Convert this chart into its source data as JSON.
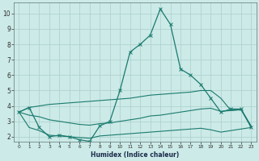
{
  "xlabel": "Humidex (Indice chaleur)",
  "background_color": "#cceae7",
  "grid_color": "#aacfcc",
  "line_color": "#1a7a6e",
  "xlim": [
    -0.5,
    23.5
  ],
  "ylim": [
    1.7,
    10.7
  ],
  "x_ticks": [
    0,
    1,
    2,
    3,
    4,
    5,
    6,
    7,
    8,
    9,
    10,
    11,
    12,
    13,
    14,
    15,
    16,
    17,
    18,
    19,
    20,
    21,
    22,
    23
  ],
  "y_ticks": [
    2,
    3,
    4,
    5,
    6,
    7,
    8,
    9,
    10
  ],
  "main_x": [
    0,
    1,
    2,
    3,
    4,
    5,
    6,
    7,
    8,
    9,
    10,
    11,
    12,
    13,
    14,
    15,
    16,
    17,
    18,
    19,
    20,
    21,
    22,
    23
  ],
  "main_y": [
    3.6,
    3.9,
    2.6,
    2.0,
    2.1,
    2.0,
    1.8,
    1.7,
    2.7,
    3.0,
    5.0,
    7.5,
    8.0,
    8.6,
    10.3,
    9.3,
    6.4,
    6.0,
    5.4,
    4.5,
    3.6,
    3.8,
    3.8,
    2.6
  ],
  "upper_x": [
    0,
    1,
    2,
    3,
    4,
    5,
    6,
    7,
    8,
    9,
    10,
    11,
    12,
    13,
    14,
    15,
    16,
    17,
    18,
    19,
    20,
    21,
    22,
    23
  ],
  "upper_y": [
    3.6,
    3.9,
    4.0,
    4.1,
    4.15,
    4.2,
    4.25,
    4.3,
    4.35,
    4.4,
    4.45,
    4.5,
    4.6,
    4.7,
    4.75,
    4.8,
    4.85,
    4.9,
    5.0,
    5.0,
    4.5,
    3.7,
    3.8,
    2.7
  ],
  "mid_x": [
    0,
    1,
    2,
    3,
    4,
    5,
    6,
    7,
    8,
    9,
    10,
    11,
    12,
    13,
    14,
    15,
    16,
    17,
    18,
    19,
    20,
    21,
    22,
    23
  ],
  "mid_y": [
    3.6,
    3.4,
    3.3,
    3.1,
    3.0,
    2.9,
    2.8,
    2.75,
    2.85,
    2.9,
    3.0,
    3.1,
    3.2,
    3.35,
    3.4,
    3.5,
    3.6,
    3.7,
    3.8,
    3.85,
    3.65,
    3.7,
    3.75,
    2.65
  ],
  "lower_x": [
    0,
    1,
    2,
    3,
    4,
    5,
    6,
    7,
    8,
    9,
    10,
    11,
    12,
    13,
    14,
    15,
    16,
    17,
    18,
    19,
    20,
    21,
    22,
    23
  ],
  "lower_y": [
    3.6,
    2.6,
    2.4,
    2.1,
    2.05,
    2.0,
    1.95,
    1.9,
    2.05,
    2.1,
    2.15,
    2.2,
    2.25,
    2.3,
    2.35,
    2.4,
    2.45,
    2.5,
    2.55,
    2.45,
    2.3,
    2.4,
    2.5,
    2.6
  ]
}
